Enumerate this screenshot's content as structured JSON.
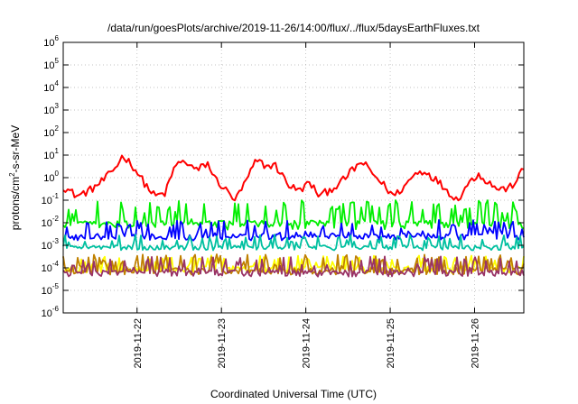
{
  "chart_data": {
    "type": "line",
    "title": "/data/run/goesPlots/archive/2019-11-26/14:00/flux/../flux/5daysEarthFluxes.txt",
    "xlabel": "Coordinated Universal Time (UTC)",
    "ylabel": "protons/cm²-s-sr-MeV",
    "ylabel_base": "protons/cm",
    "ylabel_sup": "2",
    "ylabel_rest": "-s-sr-MeV",
    "yscale": "log",
    "ylim": [
      1e-06,
      1000000.0
    ],
    "xlim": [
      "2019-11-21T03:00",
      "2019-11-26T14:00"
    ],
    "grid": true,
    "xticks": [
      "2019-11-22",
      "2019-11-23",
      "2019-11-24",
      "2019-11-25",
      "2019-11-26"
    ],
    "yticks": [
      {
        "base": "10",
        "exp": "-6"
      },
      {
        "base": "10",
        "exp": "-5"
      },
      {
        "base": "10",
        "exp": "-4"
      },
      {
        "base": "10",
        "exp": "-3"
      },
      {
        "base": "10",
        "exp": "-2"
      },
      {
        "base": "10",
        "exp": "-1"
      },
      {
        "base": "10",
        "exp": "0"
      },
      {
        "base": "10",
        "exp": "1"
      },
      {
        "base": "10",
        "exp": "2"
      },
      {
        "base": "10",
        "exp": "3"
      },
      {
        "base": "10",
        "exp": "4"
      },
      {
        "base": "10",
        "exp": "5"
      },
      {
        "base": "10",
        "exp": "6"
      }
    ],
    "series": [
      {
        "color": "#ff0000",
        "x": [
          "2019-11-21T03:00",
          "2019-11-21T07:00",
          "2019-11-21T11:00",
          "2019-11-21T15:00",
          "2019-11-21T18:00",
          "2019-11-21T20:00",
          "2019-11-21T23:00",
          "2019-11-22T02:00",
          "2019-11-22T05:00",
          "2019-11-22T08:00",
          "2019-11-22T11:00",
          "2019-11-22T14:00",
          "2019-11-22T17:00",
          "2019-11-22T20:00",
          "2019-11-22T22:00",
          "2019-11-23T01:00",
          "2019-11-23T04:00",
          "2019-11-23T07:00",
          "2019-11-23T10:00",
          "2019-11-23T13:00",
          "2019-11-23T15:00",
          "2019-11-23T17:00",
          "2019-11-23T19:00",
          "2019-11-23T22:00",
          "2019-11-24T01:00",
          "2019-11-24T04:00",
          "2019-11-24T07:00",
          "2019-11-24T10:00",
          "2019-11-24T13:00",
          "2019-11-24T16:00",
          "2019-11-24T19:00",
          "2019-11-24T22:00",
          "2019-11-25T01:00",
          "2019-11-25T04:00",
          "2019-11-25T07:00",
          "2019-11-25T10:00",
          "2019-11-25T13:00",
          "2019-11-25T16:00",
          "2019-11-25T19:00",
          "2019-11-25T22:00",
          "2019-11-26T01:00",
          "2019-11-26T04:00",
          "2019-11-26T07:00",
          "2019-11-26T10:00",
          "2019-11-26T12:00",
          "2019-11-26T14:00"
        ],
        "values": [
          0.4,
          0.15,
          0.3,
          0.9,
          3,
          10,
          3,
          0.6,
          0.15,
          0.2,
          4,
          5,
          2,
          4.5,
          1,
          0.3,
          0.1,
          0.7,
          6,
          3,
          4,
          1.5,
          0.5,
          0.25,
          0.6,
          0.15,
          0.3,
          0.6,
          2,
          5,
          1.5,
          0.5,
          0.15,
          0.4,
          1.5,
          2,
          0.8,
          0.3,
          0.1,
          0.5,
          1.5,
          0.6,
          0.3,
          0.35,
          0.8,
          2.5
        ]
      },
      {
        "color": "#00ee00",
        "x": [
          "2019-11-21T03:00",
          "2019-11-26T14:00"
        ],
        "values": [
          0.012,
          0.013
        ]
      },
      {
        "color": "#0000ff",
        "x": [
          "2019-11-21T03:00",
          "2019-11-26T14:00"
        ],
        "values": [
          0.003,
          0.0035
        ]
      },
      {
        "color": "#00c0a0",
        "x": [
          "2019-11-21T03:00",
          "2019-11-26T14:00"
        ],
        "values": [
          0.001,
          0.001
        ]
      },
      {
        "color": "#ffff00",
        "x": [
          "2019-11-21T03:00",
          "2019-11-26T14:00"
        ],
        "values": [
          0.00012,
          0.00012
        ]
      },
      {
        "color": "#c08000",
        "x": [
          "2019-11-21T03:00",
          "2019-11-26T14:00"
        ],
        "values": [
          0.0001,
          0.0001
        ]
      },
      {
        "color": "#993366",
        "x": [
          "2019-11-21T03:00",
          "2019-11-26T14:00"
        ],
        "values": [
          8e-05,
          8e-05
        ]
      }
    ]
  }
}
